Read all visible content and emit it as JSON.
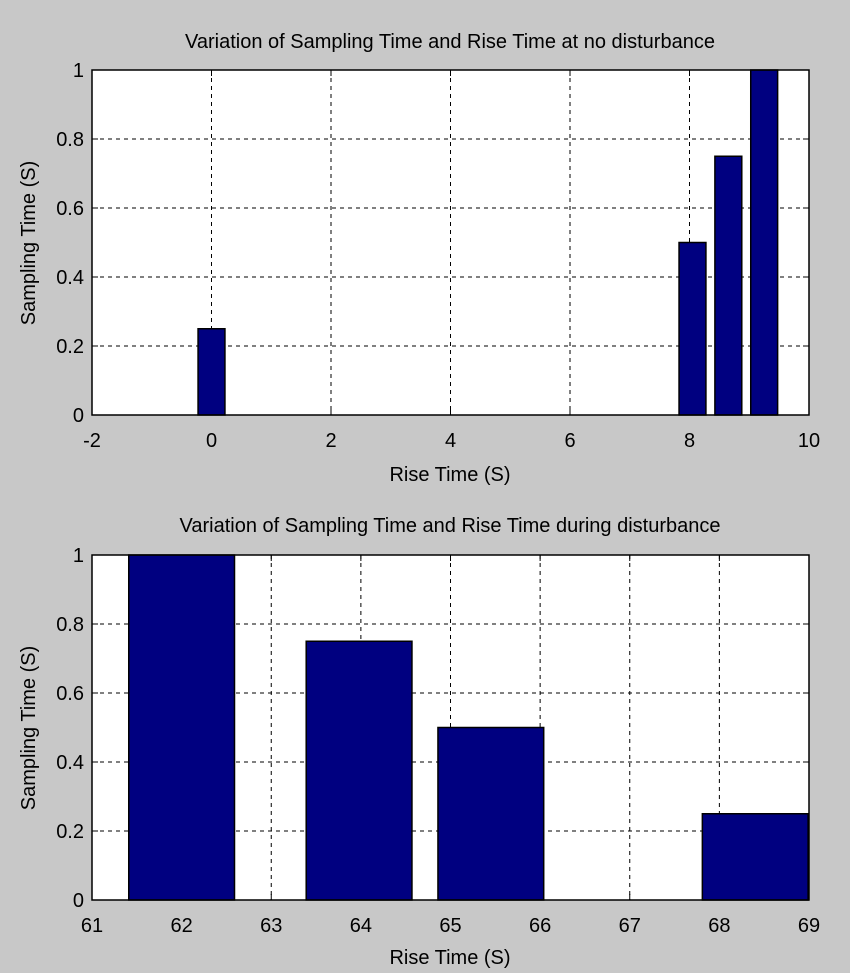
{
  "colors": {
    "figure_bg": "#c8c8c8",
    "axes_bg": "#ffffff",
    "bar_fill": "#000080",
    "bar_edge": "#000000",
    "grid": "#000000"
  },
  "chart_data": [
    {
      "type": "bar",
      "title": "Variation of Sampling Time and Rise Time at no disturbance",
      "xlabel": "Rise Time (S)",
      "ylabel": "Sampling Time (S)",
      "xlim": [
        -2,
        10
      ],
      "ylim": [
        0,
        1
      ],
      "xticks": [
        "-2",
        "0",
        "2",
        "4",
        "6",
        "8",
        "10"
      ],
      "yticks": [
        "0",
        "0.2",
        "0.4",
        "0.6",
        "0.8",
        "1"
      ],
      "grid": true,
      "bar_width": 0.45,
      "x": [
        0,
        8.05,
        8.65,
        9.25
      ],
      "values": [
        0.25,
        0.5,
        0.75,
        1.0
      ]
    },
    {
      "type": "bar",
      "title": "Variation of Sampling Time and Rise Time during disturbance",
      "xlabel": "Rise Time (S)",
      "ylabel": "Sampling Time (S)",
      "xlim": [
        61,
        69
      ],
      "ylim": [
        0,
        1
      ],
      "xticks": [
        "61",
        "62",
        "63",
        "64",
        "65",
        "66",
        "67",
        "68",
        "69"
      ],
      "yticks": [
        "0",
        "0.2",
        "0.4",
        "0.6",
        "0.8",
        "1"
      ],
      "grid": true,
      "bar_width": 1.18,
      "x": [
        62,
        63.98,
        65.45,
        68.4
      ],
      "values": [
        1.0,
        0.75,
        0.5,
        0.25
      ]
    }
  ]
}
